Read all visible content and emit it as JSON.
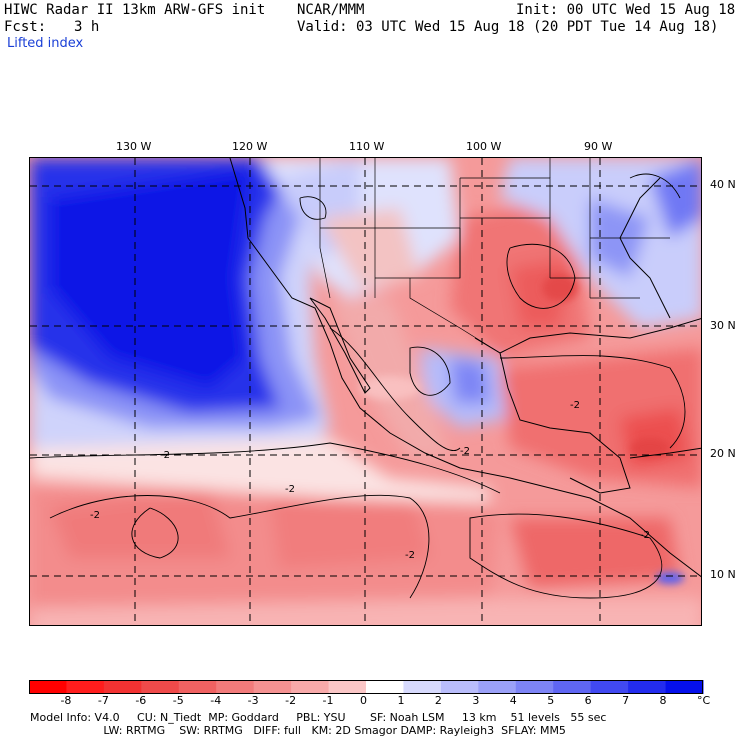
{
  "header": {
    "title": "HIWC Radar II 13km ARW-GFS init",
    "center": "NCAR/MMM",
    "init": "Init: 00 UTC Wed 15 Aug 18",
    "fcst_label": "Fcst:",
    "fcst_value": "3 h",
    "valid": "Valid: 03 UTC Wed 15 Aug 18 (20 PDT Tue 14 Aug 18)",
    "field": "Lifted index"
  },
  "map": {
    "lon_labels": [
      "130 W",
      "120 W",
      "110 W",
      "100 W",
      "90 W"
    ],
    "lat_labels": [
      "40 N",
      "30 N",
      "20 N",
      "10 N"
    ],
    "contour_labels": [
      "-2",
      "-2",
      "-2",
      "-2",
      "-2",
      "-2",
      "-2"
    ]
  },
  "colorbar": {
    "ticks": [
      "-8",
      "-7",
      "-6",
      "-5",
      "-4",
      "-3",
      "-2",
      "-1",
      "0",
      "1",
      "2",
      "3",
      "4",
      "5",
      "6",
      "7",
      "8"
    ],
    "unit": "°C",
    "colors": [
      "#ff0000",
      "#ff1d1d",
      "#f33232",
      "#ef4a4a",
      "#f06262",
      "#f27b7b",
      "#f59292",
      "#f8aaaa",
      "#fbc7c7",
      "#ffffff",
      "#d7dafd",
      "#b9bdfb",
      "#9ba1f8",
      "#7d84f6",
      "#5f66f3",
      "#4149f1",
      "#232cee",
      "#0510ec"
    ]
  },
  "footer": {
    "line1": "Model Info: V4.0     CU: N_Tiedt  MP: Goddard     PBL: YSU       SF: Noah LSM     13 km    51 levels   55 sec",
    "line2": "                     LW: RRTMG    SW: RRTMG   DIFF: full   KM: 2D Smagor DAMP: Rayleigh3  SFLAY: MM5"
  }
}
